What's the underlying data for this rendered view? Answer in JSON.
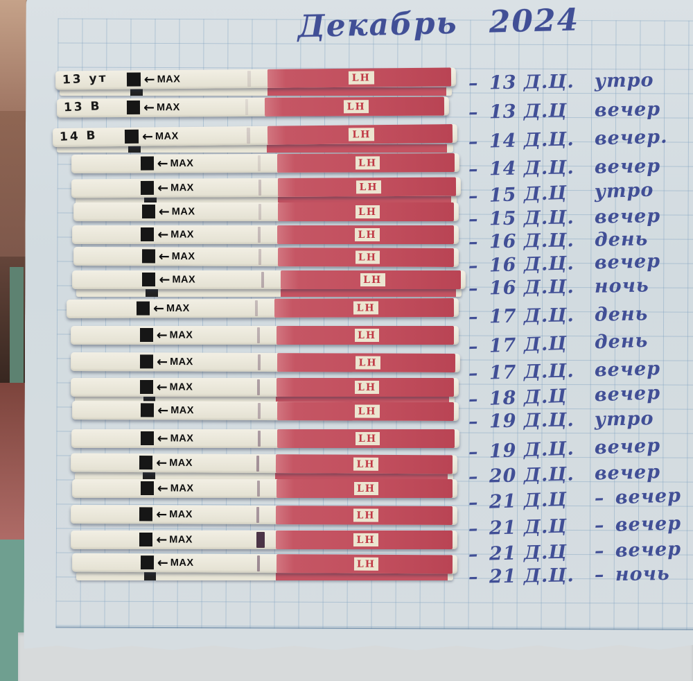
{
  "title": "Декабрь 2024",
  "annotation_dash": "–",
  "strip_print": {
    "arrow": "←",
    "max": "MAX",
    "lh": "LH"
  },
  "strips": [
    {
      "marker": "13 ут",
      "day": "13 Д.Ц.",
      "sep": "",
      "time": "утро",
      "line_intensity": 0.15
    },
    {
      "marker": "13 В",
      "day": "13 Д.Ц",
      "sep": "",
      "time": "вечер",
      "line_intensity": 0.12
    },
    {
      "marker": "14 В",
      "day": "14 Д.Ц.",
      "sep": "",
      "time": "вечер.",
      "line_intensity": 0.2
    },
    {
      "marker": "",
      "day": "14 Д.Ц.",
      "sep": "",
      "time": "вечер",
      "line_intensity": 0.15
    },
    {
      "marker": "",
      "day": "15 Д.Ц",
      "sep": "",
      "time": "утро",
      "line_intensity": 0.28
    },
    {
      "marker": "",
      "day": "15 Д.Ц.",
      "sep": "",
      "time": "вечер",
      "line_intensity": 0.22
    },
    {
      "marker": "",
      "day": "16 Д.Ц.",
      "sep": "",
      "time": "день",
      "line_intensity": 0.3
    },
    {
      "marker": "",
      "day": "16 Д.Ц.",
      "sep": "",
      "time": "вечер",
      "line_intensity": 0.28
    },
    {
      "marker": "",
      "day": "16 Д.Ц.",
      "sep": "",
      "time": "ночь",
      "line_intensity": 0.4
    },
    {
      "marker": "",
      "day": "17 Д.Ц.",
      "sep": "",
      "time": "день",
      "line_intensity": 0.32
    },
    {
      "marker": "",
      "day": "17 Д.Ц",
      "sep": "",
      "time": "день",
      "line_intensity": 0.38
    },
    {
      "marker": "",
      "day": "17 Д.Ц.",
      "sep": "",
      "time": "вечер",
      "line_intensity": 0.42
    },
    {
      "marker": "",
      "day": "18 Д.Ц",
      "sep": "",
      "time": "вечер",
      "line_intensity": 0.5
    },
    {
      "marker": "",
      "day": "19 Д.Ц.",
      "sep": "",
      "time": "утро",
      "line_intensity": 0.4
    },
    {
      "marker": "",
      "day": "19 Д.Ц.",
      "sep": "",
      "time": "вечер",
      "line_intensity": 0.52
    },
    {
      "marker": "",
      "day": "20 Д.Ц.",
      "sep": "",
      "time": "вечер",
      "line_intensity": 0.58
    },
    {
      "marker": "",
      "day": "21 Д.Ц",
      "sep": "–",
      "time": "вечер",
      "line_intensity": 0.5
    },
    {
      "marker": "",
      "day": "21 Д.Ц",
      "sep": "–",
      "time": "вечер",
      "line_intensity": 0.55
    },
    {
      "marker": "",
      "day": "21 Д.Ц",
      "sep": "–",
      "time": "вечер",
      "line_intensity": 0.9
    },
    {
      "marker": "",
      "day": "21 Д.Ц.",
      "sep": "–",
      "time": "ночь",
      "line_intensity": 0.62
    }
  ]
}
